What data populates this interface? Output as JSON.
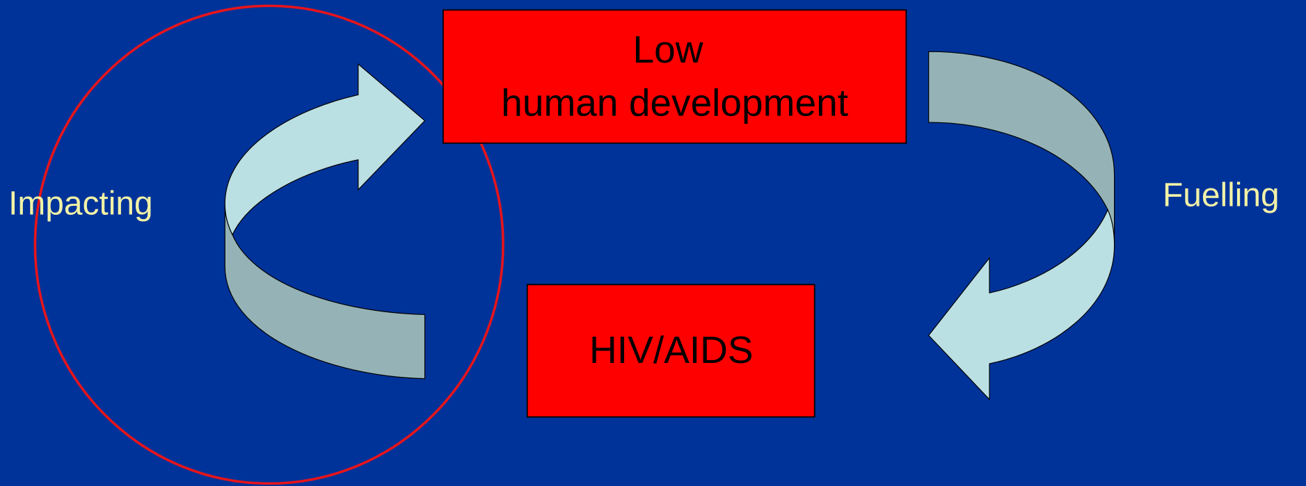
{
  "nodes": [
    {
      "lines": [
        "Low",
        "human development"
      ]
    },
    {
      "lines": [
        "HIV/AIDS"
      ]
    }
  ],
  "edges": [
    {
      "label": "Fuelling"
    },
    {
      "label": "Impacting"
    }
  ]
}
